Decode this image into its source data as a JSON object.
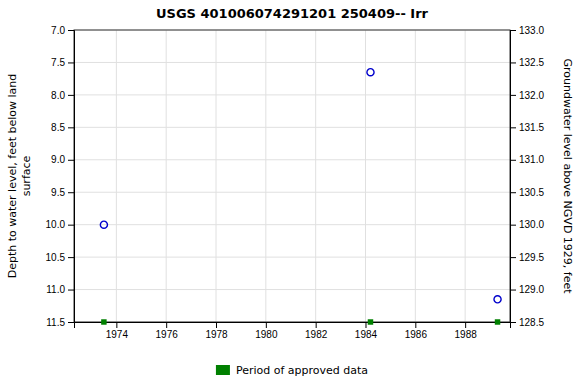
{
  "chart_data": {
    "type": "scatter",
    "title": "USGS 401006074291201 250409-- Irr",
    "ylabel": "Depth to water level, feet below land\n surface",
    "y2label": "Groundwater level above NGVD 1929, feet",
    "x": [
      1973.5,
      1984.2,
      1989.3
    ],
    "series": [
      {
        "values": [
          10.0,
          7.65,
          11.15
        ],
        "color": "#0000cc",
        "marker": "circle"
      }
    ],
    "approved_data": {
      "label": "Period of approved data",
      "x": [
        1973.5,
        1984.2,
        1989.3
      ],
      "color": "#008000",
      "marker": "square"
    },
    "xlim": [
      1972.3,
      1989.8
    ],
    "xticks": [
      1974,
      1976,
      1978,
      1980,
      1982,
      1984,
      1986,
      1988
    ],
    "ylim": [
      11.5,
      7.0
    ],
    "yticks": [
      {
        "value": 7.0,
        "label": "7.0"
      },
      7.5,
      {
        "value": 8.0,
        "label": "8.0"
      },
      8.5,
      {
        "value": 9.0,
        "label": "9.0"
      },
      9.5,
      {
        "value": 10.0,
        "label": "10.0"
      },
      10.5,
      {
        "value": 11.0,
        "label": "11.0"
      },
      11.5
    ],
    "y2lim": [
      128.5,
      133.0
    ],
    "y2ticks": [
      128.5,
      {
        "value": 129.0,
        "label": "129.0"
      },
      129.5,
      {
        "value": 130.0,
        "label": "130.0"
      },
      130.5,
      {
        "value": 131.0,
        "label": "131.0"
      },
      131.5,
      {
        "value": 132.0,
        "label": "132.0"
      },
      132.5,
      {
        "value": 133.0,
        "label": "133.0"
      }
    ],
    "grid": true,
    "legend": "bottom"
  }
}
